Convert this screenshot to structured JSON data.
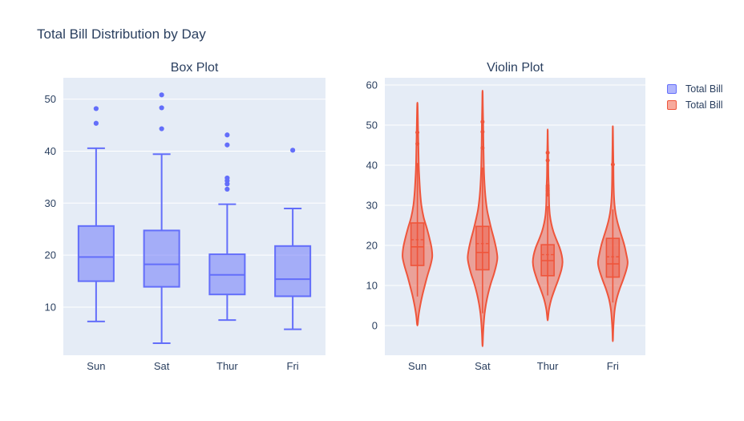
{
  "page": {
    "title": "Total Bill Distribution by Day"
  },
  "colors": {
    "paper_bg": "#ffffff",
    "plot_bg": "#E5ECF6",
    "grid": "#ffffff",
    "font": "#2a3f5f",
    "box_accent": "#636EFA",
    "violin_accent": "#EF553B"
  },
  "legend": {
    "items": [
      {
        "label": "Total Bill",
        "color": "#636EFA"
      },
      {
        "label": "Total Bill",
        "color": "#EF553B"
      }
    ]
  },
  "chart_data": [
    {
      "type": "box",
      "title": "Box Plot",
      "series_name": "Total Bill",
      "color": "#636EFA",
      "categories": [
        "Sun",
        "Sat",
        "Thur",
        "Fri"
      ],
      "ylabel": "",
      "ylim": [
        0.75,
        54.1
      ],
      "yticks": [
        10,
        20,
        30,
        40,
        50
      ],
      "grid": true,
      "stats": [
        {
          "category": "Sun",
          "lower_whisker": 7.25,
          "q1": 14.99,
          "median": 19.63,
          "q3": 25.6,
          "upper_whisker": 40.55,
          "outliers": [
            45.35,
            48.17
          ]
        },
        {
          "category": "Sat",
          "lower_whisker": 3.07,
          "q1": 13.91,
          "median": 18.24,
          "q3": 24.74,
          "upper_whisker": 39.42,
          "outliers": [
            44.3,
            48.33,
            50.81
          ]
        },
        {
          "category": "Thur",
          "lower_whisker": 7.51,
          "q1": 12.44,
          "median": 16.2,
          "q3": 20.16,
          "upper_whisker": 29.8,
          "outliers": [
            32.68,
            33.68,
            34.3,
            34.83,
            41.19,
            43.11
          ]
        },
        {
          "category": "Fri",
          "lower_whisker": 5.75,
          "q1": 12.09,
          "median": 15.38,
          "q3": 21.75,
          "upper_whisker": 28.97,
          "outliers": [
            40.17
          ]
        }
      ]
    },
    {
      "type": "violin",
      "title": "Violin Plot",
      "series_name": "Total Bill",
      "color": "#EF553B",
      "categories": [
        "Sun",
        "Sat",
        "Thur",
        "Fri"
      ],
      "ylabel": "",
      "ylim": [
        -7.4,
        61.8
      ],
      "yticks": [
        0,
        10,
        20,
        30,
        40,
        50,
        60
      ],
      "grid": true,
      "stats": [
        {
          "category": "Sun",
          "span": [
            0.3,
            55.3
          ],
          "q1": 14.99,
          "median": 19.63,
          "q3": 25.6,
          "mean": 21.41,
          "lower_whisker": 7.25,
          "upper_whisker": 40.55,
          "outliers": [
            45.35,
            48.17
          ],
          "profile": [
            [
              0.3,
              0.02
            ],
            [
              2.5,
              0.08
            ],
            [
              5,
              0.19
            ],
            [
              7.5,
              0.33
            ],
            [
              10,
              0.5
            ],
            [
              12.5,
              0.68
            ],
            [
              15,
              0.88
            ],
            [
              17.2,
              1.0
            ],
            [
              19.5,
              0.95
            ],
            [
              22,
              0.8
            ],
            [
              24.5,
              0.62
            ],
            [
              27,
              0.42
            ],
            [
              30,
              0.27
            ],
            [
              33,
              0.19
            ],
            [
              36,
              0.14
            ],
            [
              39,
              0.1
            ],
            [
              42,
              0.08
            ],
            [
              45,
              0.065
            ],
            [
              48,
              0.05
            ],
            [
              51,
              0.035
            ],
            [
              53,
              0.025
            ],
            [
              55.3,
              0.01
            ]
          ]
        },
        {
          "category": "Sat",
          "span": [
            -4.8,
            58.2
          ],
          "q1": 13.91,
          "median": 18.24,
          "q3": 24.74,
          "mean": 20.44,
          "lower_whisker": 3.07,
          "upper_whisker": 39.42,
          "outliers": [
            44.3,
            48.33,
            50.81
          ],
          "profile": [
            [
              -4.8,
              0.01
            ],
            [
              -2,
              0.04
            ],
            [
              0.5,
              0.08
            ],
            [
              3,
              0.14
            ],
            [
              5.5,
              0.24
            ],
            [
              8,
              0.38
            ],
            [
              10.5,
              0.56
            ],
            [
              13,
              0.78
            ],
            [
              15.5,
              0.95
            ],
            [
              17,
              1.0
            ],
            [
              19,
              0.93
            ],
            [
              21.5,
              0.78
            ],
            [
              24,
              0.6
            ],
            [
              26.5,
              0.44
            ],
            [
              29,
              0.3
            ],
            [
              32,
              0.2
            ],
            [
              35,
              0.14
            ],
            [
              38,
              0.1
            ],
            [
              41,
              0.08
            ],
            [
              44,
              0.065
            ],
            [
              47,
              0.055
            ],
            [
              50,
              0.045
            ],
            [
              52,
              0.035
            ],
            [
              55,
              0.02
            ],
            [
              58.2,
              0.008
            ]
          ]
        },
        {
          "category": "Thur",
          "span": [
            1.6,
            48.6
          ],
          "q1": 12.44,
          "median": 16.2,
          "q3": 20.16,
          "mean": 17.68,
          "lower_whisker": 7.51,
          "upper_whisker": 29.8,
          "outliers": [
            32.68,
            33.68,
            34.3,
            34.83,
            41.19,
            43.11
          ],
          "profile": [
            [
              1.6,
              0.015
            ],
            [
              4,
              0.09
            ],
            [
              6.5,
              0.24
            ],
            [
              9,
              0.47
            ],
            [
              11.5,
              0.72
            ],
            [
              14,
              0.93
            ],
            [
              15.8,
              1.0
            ],
            [
              17.5,
              0.95
            ],
            [
              19.5,
              0.8
            ],
            [
              21.5,
              0.58
            ],
            [
              23.5,
              0.38
            ],
            [
              25.5,
              0.24
            ],
            [
              27.5,
              0.15
            ],
            [
              30,
              0.1
            ],
            [
              32.5,
              0.085
            ],
            [
              34.5,
              0.075
            ],
            [
              37,
              0.05
            ],
            [
              39.5,
              0.04
            ],
            [
              42,
              0.035
            ],
            [
              44,
              0.025
            ],
            [
              46,
              0.015
            ],
            [
              48.6,
              0.006
            ]
          ]
        },
        {
          "category": "Fri",
          "span": [
            -3.6,
            49.2
          ],
          "q1": 12.09,
          "median": 15.38,
          "q3": 21.75,
          "mean": 17.15,
          "lower_whisker": 5.75,
          "upper_whisker": 28.97,
          "outliers": [
            40.17
          ],
          "profile": [
            [
              -3.6,
              0.008
            ],
            [
              -1,
              0.03
            ],
            [
              1.5,
              0.07
            ],
            [
              4,
              0.13
            ],
            [
              6.5,
              0.25
            ],
            [
              9,
              0.45
            ],
            [
              11.5,
              0.7
            ],
            [
              14,
              0.92
            ],
            [
              15.8,
              1.0
            ],
            [
              18,
              0.9
            ],
            [
              20,
              0.78
            ],
            [
              22,
              0.62
            ],
            [
              24,
              0.45
            ],
            [
              26,
              0.3
            ],
            [
              28,
              0.19
            ],
            [
              30,
              0.12
            ],
            [
              32.5,
              0.075
            ],
            [
              35,
              0.055
            ],
            [
              37.5,
              0.045
            ],
            [
              40,
              0.04
            ],
            [
              42.5,
              0.03
            ],
            [
              45,
              0.02
            ],
            [
              49.2,
              0.007
            ]
          ]
        }
      ]
    }
  ]
}
